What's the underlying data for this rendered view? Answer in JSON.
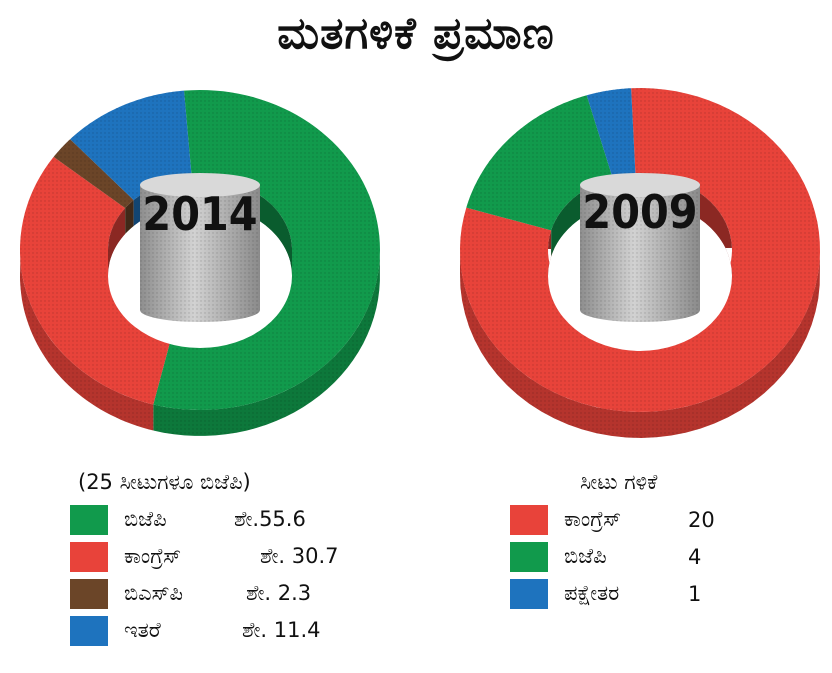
{
  "title": "ಮತಗಳಿಕೆ ಪ್ರಮಾಣ",
  "chart_data": [
    {
      "type": "pie",
      "center_label": "2014",
      "legend_title": "(25 ಸೀಟುಗಳೂ ಬಿಜೆಪಿ)",
      "slices": [
        {
          "label": "ಬಿಜೆಪಿ",
          "value_text": "ಶೇ.55.6",
          "value": 55.6,
          "color": "#119a4c"
        },
        {
          "label": "ಕಾಂಗ್ರೆಸ್",
          "value_text": "ಶೇ. 30.7",
          "value": 30.7,
          "color": "#e8433a"
        },
        {
          "label": "ಬಿಎಸ್‌ಪಿ",
          "value_text": "ಶೇ. 2.3",
          "value": 2.3,
          "color": "#6b4528"
        },
        {
          "label": "ಇತರೆ",
          "value_text": "ಶೇ. 11.4",
          "value": 11.4,
          "color": "#1e73be"
        }
      ]
    },
    {
      "type": "pie",
      "center_label": "2009",
      "legend_title": "ಸೀಟು ಗಳಿಕೆ",
      "slices": [
        {
          "label": "ಕಾಂಗ್ರೆಸ್",
          "value_text": "20",
          "value": 20,
          "color": "#e8433a"
        },
        {
          "label": "ಬಿಜೆಪಿ",
          "value_text": "4",
          "value": 4,
          "color": "#119a4c"
        },
        {
          "label": "ಪಕ್ಷೇತರ",
          "value_text": "1",
          "value": 1,
          "color": "#1e73be"
        }
      ]
    }
  ]
}
